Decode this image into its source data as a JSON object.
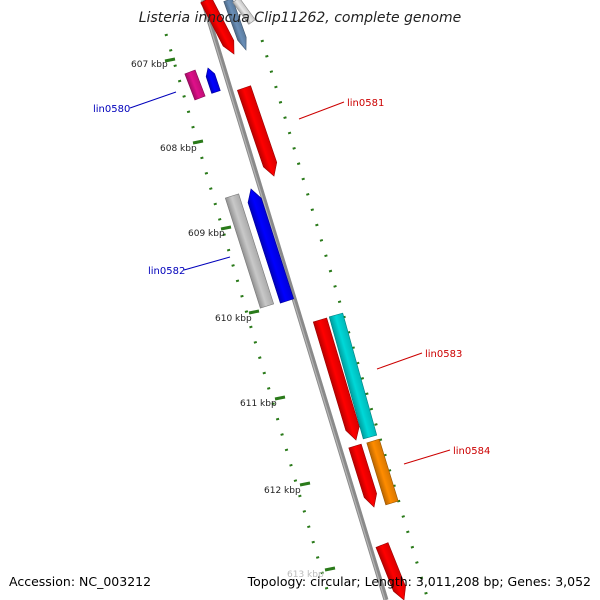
{
  "title": "Listeria innocua Clip11262, complete genome",
  "footer": {
    "accession": "Accession: NC_003212",
    "summary": "Topology: circular; Length: 3,011,208 bp; Genes: 3,052"
  },
  "ticks": [
    {
      "label": "607 kbp"
    },
    {
      "label": "608 kbp"
    },
    {
      "label": "609 kbp"
    },
    {
      "label": "610 kbp"
    },
    {
      "label": "611 kbp"
    },
    {
      "label": "612 kbp"
    },
    {
      "label": "613 kbp"
    }
  ],
  "genes": [
    {
      "label": "lin0580"
    },
    {
      "label": "lin0581"
    },
    {
      "label": "lin0582"
    },
    {
      "label": "lin0583"
    },
    {
      "label": "lin0584"
    }
  ],
  "colors": {
    "backbone": "#8a8a8a",
    "tick": "#2a7a1a",
    "label_reverse": "#0000bb",
    "label_forward": "#cc0000",
    "red": "#ff0000",
    "blue": "#0000ff",
    "gray": "#c8c8c8",
    "cyan": "#00d8d8",
    "orange": "#ff8c00",
    "magenta": "#e0108a",
    "steelblue": "#6a8fb8"
  }
}
